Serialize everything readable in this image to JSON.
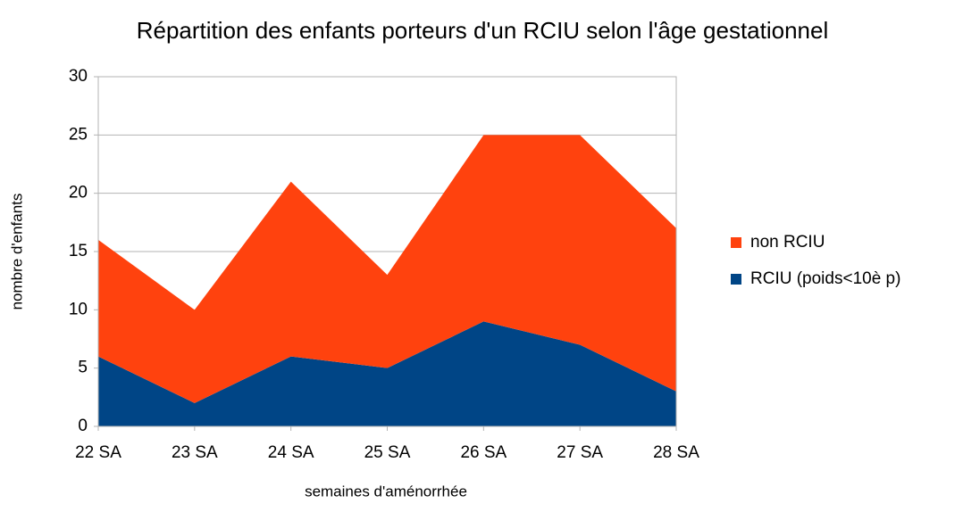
{
  "chart_data": {
    "type": "stacked_area",
    "title": "Répartition des enfants porteurs d'un RCIU selon l'âge gestationnel",
    "x_label": "semaines d'aménorrhée",
    "y_label": "nombre d'enfants",
    "categories": [
      "22 SA",
      "23 SA",
      "24 SA",
      "25 SA",
      "26 SA",
      "27 SA",
      "28 SA"
    ],
    "series": [
      {
        "name": "non RCIU",
        "color": "#ff420e",
        "values": [
          10,
          8,
          15,
          8,
          16,
          18,
          14
        ]
      },
      {
        "name": "RCIU (poids<10è p)",
        "color": "#004586",
        "values": [
          6,
          2,
          6,
          5,
          9,
          7,
          3
        ]
      }
    ],
    "ylim": [
      0,
      30
    ],
    "yticks": [
      0,
      5,
      10,
      15,
      20,
      25,
      30
    ],
    "grid": true,
    "legend": "right"
  }
}
